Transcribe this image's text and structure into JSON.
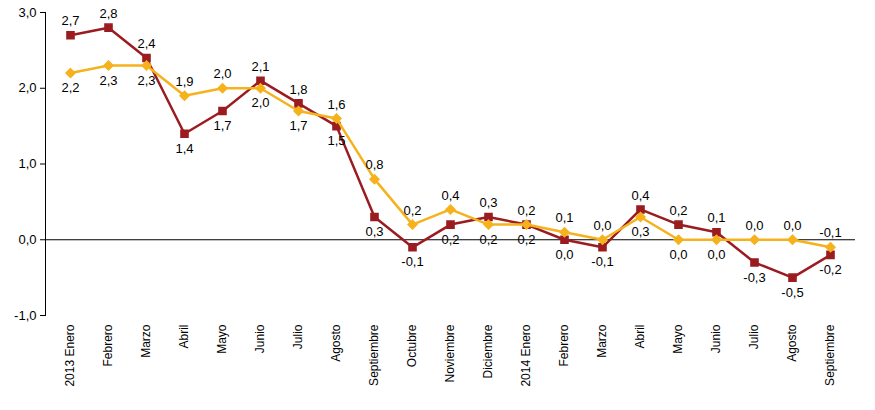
{
  "chart_data": {
    "type": "line",
    "categories": [
      "2013 Enero",
      "Febrero",
      "Marzo",
      "Abril",
      "Mayo",
      "Junio",
      "Julio",
      "Agosto",
      "Septiembre",
      "Octubre",
      "Noviembre",
      "Diciembre",
      "2014 Enero",
      "Febrero",
      "Marzo",
      "Abril",
      "Mayo",
      "Junio",
      "Julio",
      "Agosto",
      "Septiembre"
    ],
    "series": [
      {
        "color": "#9b1c20",
        "marker": "square",
        "values": [
          2.7,
          2.8,
          2.4,
          1.4,
          1.7,
          2.1,
          1.8,
          1.5,
          0.3,
          -0.1,
          0.2,
          0.3,
          0.2,
          0.0,
          -0.1,
          0.4,
          0.2,
          0.1,
          -0.3,
          -0.5,
          -0.2
        ],
        "value_labels": [
          "2,7",
          "2,8",
          "2,4",
          "1,4",
          "1,7",
          "2,1",
          "1,8",
          "1,5",
          "0,3",
          "-0,1",
          "0,2",
          "0,3",
          "0,2",
          "0,0",
          "-0,1",
          "0,4",
          "0,2",
          "0,1",
          "-0,3",
          "-0,5",
          "-0,2"
        ]
      },
      {
        "color": "#f5b21c",
        "marker": "diamond",
        "values": [
          2.2,
          2.3,
          2.3,
          1.9,
          2.0,
          2.0,
          1.7,
          1.6,
          0.8,
          0.2,
          0.4,
          0.2,
          0.2,
          0.1,
          0.0,
          0.3,
          0.0,
          0.0,
          0.0,
          0.0,
          -0.1
        ],
        "value_labels": [
          "2,2",
          "2,3",
          "2,3",
          "1,9",
          "2,0",
          "2,0",
          "1,7",
          "1,6",
          "0,8",
          "0,2",
          "0,4",
          "0,2",
          "0,2",
          "0,1",
          "0,0",
          "0,3",
          "0,0",
          "0,0",
          "0,0",
          "0,0",
          "-0,1"
        ]
      }
    ],
    "ylim": [
      -1,
      3
    ],
    "yticks": [
      {
        "value": -1,
        "label": "-1,0"
      },
      {
        "value": 0,
        "label": "0,0"
      },
      {
        "value": 1,
        "label": "1,0"
      },
      {
        "value": 2,
        "label": "2,0"
      },
      {
        "value": 3,
        "label": "3,0"
      }
    ],
    "grid": false,
    "data_labels": true
  }
}
